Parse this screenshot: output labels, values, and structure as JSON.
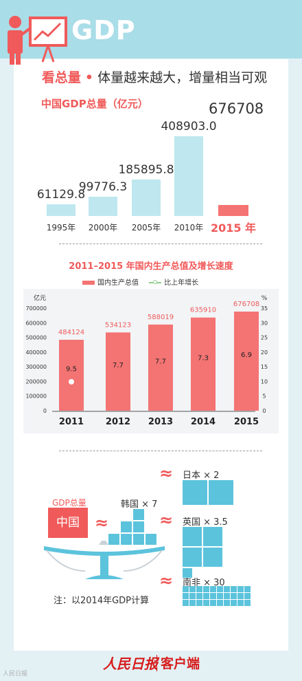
{
  "header": {
    "title": "GDP"
  },
  "headline": {
    "highlight": "看总量",
    "dot": "•",
    "rest": "体量越来越大，增量相当可观"
  },
  "section1": {
    "title": "中国GDP总量（亿元）",
    "big_value": "676708",
    "colors": {
      "bar": "#bfe7ef",
      "highlight": "#f47373"
    }
  },
  "section2": {
    "title": "2011–2015 年国内生产总值及增长速度",
    "legend": {
      "gdp": "国内生产总值",
      "growth": "比上年增长"
    },
    "y_left_unit": "亿元",
    "y_right_unit": "%",
    "colors": {
      "bar": "#f47373",
      "line": "#8fce8a",
      "panel": "#f2f4f6"
    }
  },
  "chart_data": [
    {
      "type": "bar",
      "title": "中国GDP总量（亿元）",
      "categories": [
        "1995年",
        "2000年",
        "2005年",
        "2010年",
        "2015 年"
      ],
      "labels": [
        "61129.8",
        "99776.3",
        "185895.8",
        "408903.0",
        "676708"
      ],
      "values": [
        61129.8,
        99776.3,
        185895.8,
        408903.0,
        676708
      ]
    },
    {
      "type": "bar",
      "title": "2011–2015 年国内生产总值及增长速度",
      "categories": [
        "2011",
        "2012",
        "2013",
        "2014",
        "2015"
      ],
      "series": [
        {
          "name": "国内生产总值",
          "values": [
            484124,
            534123,
            588019,
            635910,
            676708
          ]
        },
        {
          "name": "比上年增长",
          "values": [
            9.5,
            7.7,
            7.7,
            7.3,
            6.9
          ]
        }
      ],
      "ylabel": "亿元",
      "y2label": "%",
      "ylim": [
        0,
        700000
      ],
      "y2lim": [
        0,
        35
      ],
      "yticks": [
        0,
        100000,
        200000,
        300000,
        400000,
        500000,
        600000,
        700000
      ],
      "y2ticks": [
        0,
        5,
        10,
        15,
        20,
        25,
        30,
        35
      ]
    }
  ],
  "comparison": {
    "china_top": "GDP总量",
    "china_label": "中国",
    "korea": "韩国 × 7",
    "japan": "日本 × 2",
    "uk": "英国 × 3.5",
    "sa": "南非 × 30",
    "approx": "≈",
    "colors": {
      "china": "#f05a5a",
      "tile": "#5cc3dc"
    }
  },
  "note": "注：以2014年GDP计算",
  "footer": {
    "logo": "人民日报",
    "app": "客户端",
    "watermark": "人民日报"
  }
}
